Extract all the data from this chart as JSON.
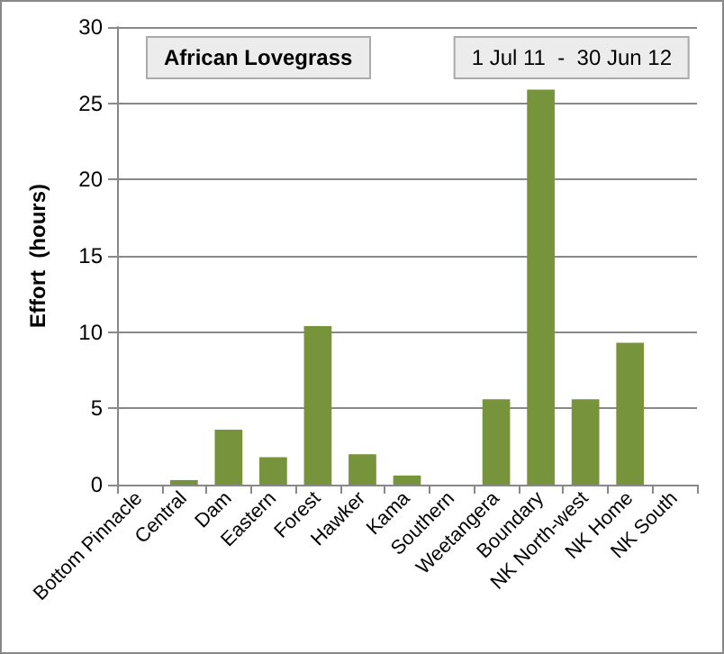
{
  "chart_data": {
    "type": "bar",
    "title": "African Lovegrass",
    "ylabel": "Effort  (hours)",
    "annotations": [
      "1 Jul 11  -  30 Jun 12"
    ],
    "categories": [
      "Bottom Pinnacle",
      "Central",
      "Dam",
      "Eastern",
      "Forest",
      "Hawker",
      "Kama",
      "Southern",
      "Weetangera",
      "Boundary",
      "NK North-west",
      "NK Home",
      "NK South"
    ],
    "values": [
      0,
      0.3,
      3.6,
      1.8,
      10.4,
      2.0,
      0.6,
      0,
      5.6,
      25.9,
      5.6,
      9.3,
      0
    ],
    "color": "#77933c",
    "ylim": [
      0,
      30
    ],
    "yticks": [
      0,
      5,
      10,
      15,
      20,
      25,
      30
    ],
    "grid": "y"
  }
}
